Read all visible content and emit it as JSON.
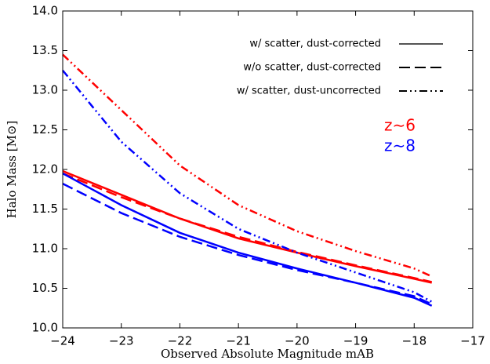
{
  "chart_data": {
    "type": "line",
    "x_label": "Observed Absolute Magnitude mAB",
    "y_label": "Halo Mass [M⊙]",
    "xlim": [
      -24,
      -17
    ],
    "ylim": [
      10.0,
      14.0
    ],
    "xticks": [
      {
        "value": -24,
        "label": "−24"
      },
      {
        "value": -23,
        "label": "−23"
      },
      {
        "value": -22,
        "label": "−22"
      },
      {
        "value": -21,
        "label": "−21"
      },
      {
        "value": -20,
        "label": "−20"
      },
      {
        "value": -19,
        "label": "−19"
      },
      {
        "value": -18,
        "label": "−18"
      },
      {
        "value": -17,
        "label": "−17"
      }
    ],
    "yticks": [
      {
        "value": 10,
        "label": "10.0"
      },
      {
        "value": 10.5,
        "label": "10.5"
      },
      {
        "value": 11,
        "label": "11.0"
      },
      {
        "value": 11.5,
        "label": "11.5"
      },
      {
        "value": 12,
        "label": "12.0"
      },
      {
        "value": 12.5,
        "label": "12.5"
      },
      {
        "value": 13,
        "label": "13.0"
      },
      {
        "value": 13.5,
        "label": "13.5"
      },
      {
        "value": 14,
        "label": "14.0"
      }
    ],
    "x": [
      -24,
      -23,
      -22,
      -21,
      -20,
      -19,
      -18,
      -17.7
    ],
    "series": [
      {
        "color": "#ff0000",
        "dash": "solid",
        "values": [
          11.98,
          11.68,
          11.38,
          11.13,
          10.95,
          10.78,
          10.62,
          10.57
        ]
      },
      {
        "color": "#ff0000",
        "dash": "dashed",
        "values": [
          11.95,
          11.65,
          11.38,
          11.15,
          10.96,
          10.79,
          10.63,
          10.58
        ]
      },
      {
        "color": "#ff0000",
        "dash": "dashdotdot",
        "values": [
          13.45,
          12.75,
          12.05,
          11.55,
          11.22,
          10.97,
          10.75,
          10.65
        ]
      },
      {
        "color": "#0000ff",
        "dash": "solid",
        "values": [
          11.95,
          11.55,
          11.2,
          10.95,
          10.75,
          10.57,
          10.38,
          10.28
        ]
      },
      {
        "color": "#0000ff",
        "dash": "dashed",
        "values": [
          11.82,
          11.45,
          11.15,
          10.92,
          10.73,
          10.57,
          10.4,
          10.3
        ]
      },
      {
        "color": "#0000ff",
        "dash": "dashdotdot",
        "values": [
          13.25,
          12.35,
          11.7,
          11.25,
          10.95,
          10.7,
          10.45,
          10.33
        ]
      }
    ],
    "legend": [
      {
        "label": "w/ scatter, dust-corrected",
        "dash": "solid",
        "color": "#555555"
      },
      {
        "label": "w/o scatter, dust-corrected",
        "dash": "dashed",
        "color": "#000000"
      },
      {
        "label": "w/ scatter, dust-uncorrected",
        "dash": "dashdotdot",
        "color": "#000000"
      }
    ],
    "annotations": [
      {
        "text": "z∼6",
        "color": "#ff0000"
      },
      {
        "text": "z∼8",
        "color": "#0000ff"
      }
    ]
  }
}
